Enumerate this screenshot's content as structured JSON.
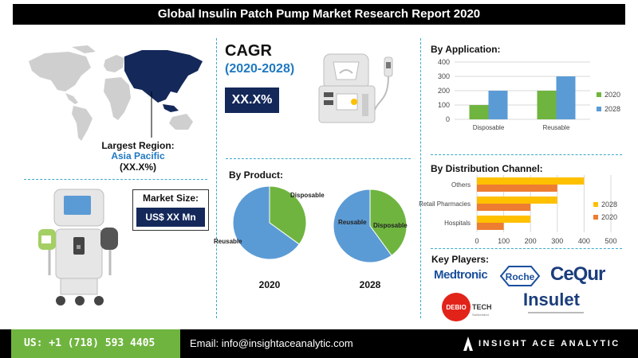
{
  "header": {
    "title": "Global Insulin Patch Pump Market Research Report 2020"
  },
  "region": {
    "label": "Largest Region:",
    "name": "Asia Pacific",
    "value": "(XX.X%)"
  },
  "cagr": {
    "title": "CAGR",
    "years": "(2020-2028)",
    "value": "XX.X%"
  },
  "market_size": {
    "label": "Market Size:",
    "value": "US$ XX Mn"
  },
  "sections": {
    "product": "By Product:",
    "application": "By Application:",
    "distribution": "By Distribution Channel:",
    "key_players": "Key Players:"
  },
  "colors": {
    "navy": "#14285a",
    "green": "#6fb43f",
    "blue": "#5b9bd5",
    "yellow": "#ffc000",
    "orange": "#ed7d31",
    "accent": "#1f78c1"
  },
  "players": {
    "medtronic": "Medtronic",
    "roche": "Roche",
    "cequr": "CeQur",
    "debiotech": {
      "part1": "DEBIO",
      "part2": "TECH",
      "sub": "Switzerland"
    },
    "insulet": "Insulet"
  },
  "footer": {
    "phone": "US: +1 (718) 593 4405",
    "email": "Email: info@insightaceanalytic.com",
    "brand": "INSIGHT ACE ANALYTIC"
  },
  "chart_data": [
    {
      "type": "bar",
      "name": "By Application",
      "categories": [
        "Disposable",
        "Reusable"
      ],
      "series": [
        {
          "name": "2020",
          "values": [
            100,
            200
          ],
          "color": "#6fb43f"
        },
        {
          "name": "2028",
          "values": [
            200,
            300
          ],
          "color": "#5b9bd5"
        }
      ],
      "ylim": [
        0,
        400
      ],
      "yticks": [
        0,
        100,
        200,
        300,
        400
      ],
      "legend": "right",
      "grid": true
    },
    {
      "type": "bar",
      "orientation": "horizontal",
      "name": "By Distribution Channel",
      "categories": [
        "Others",
        "Retail Pharmacies",
        "Hospitals"
      ],
      "series": [
        {
          "name": "2028",
          "values": [
            400,
            300,
            200
          ],
          "color": "#ffc000"
        },
        {
          "name": "2020",
          "values": [
            300,
            200,
            100
          ],
          "color": "#ed7d31"
        }
      ],
      "xlim": [
        0,
        500
      ],
      "xticks": [
        0,
        100,
        200,
        300,
        400,
        500
      ],
      "legend": "right",
      "grid": true
    },
    {
      "type": "pie",
      "label": "2020",
      "slices": [
        {
          "name": "Disposable",
          "value": 35,
          "color": "#6fb43f"
        },
        {
          "name": "Reusable",
          "value": 65,
          "color": "#5b9bd5"
        }
      ]
    },
    {
      "type": "pie",
      "label": "2028",
      "slices": [
        {
          "name": "Disposable",
          "value": 40,
          "color": "#6fb43f"
        },
        {
          "name": "Reusable",
          "value": 60,
          "color": "#5b9bd5"
        }
      ]
    }
  ]
}
